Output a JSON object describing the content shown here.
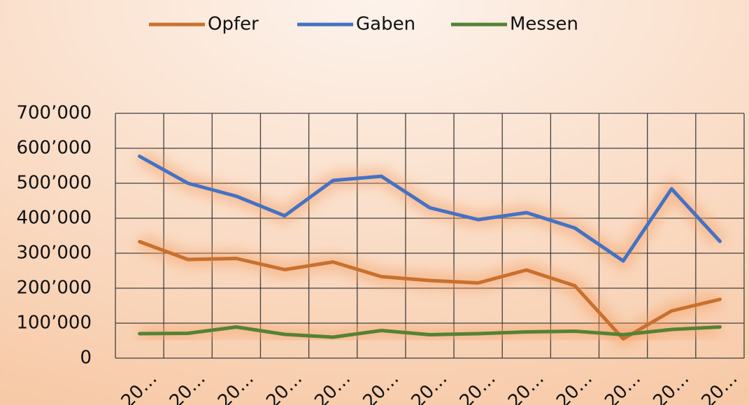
{
  "chart_data": {
    "type": "line",
    "categories": [
      "20…",
      "20…",
      "20…",
      "20…",
      "20…",
      "20…",
      "20…",
      "20…",
      "20…",
      "20…",
      "20…",
      "20…",
      "20…"
    ],
    "series": [
      {
        "name": "Opfer",
        "color": "#c9702e",
        "values": [
          333000,
          282000,
          285000,
          253000,
          275000,
          233000,
          222000,
          215000,
          252000,
          207000,
          55000,
          135000,
          168000
        ]
      },
      {
        "name": "Gaben",
        "color": "#4472c4",
        "values": [
          577000,
          500000,
          463000,
          407000,
          508000,
          520000,
          430000,
          396000,
          416000,
          372000,
          278000,
          484000,
          334000
        ]
      },
      {
        "name": "Messen",
        "color": "#548235",
        "values": [
          70000,
          71000,
          89000,
          68000,
          60000,
          79000,
          67000,
          70000,
          75000,
          77000,
          67000,
          82000,
          89000
        ]
      }
    ],
    "ylim": [
      0,
      700000
    ],
    "yticks": [
      {
        "value": 0,
        "label": "0"
      },
      {
        "value": 100000,
        "label": "100’000"
      },
      {
        "value": 200000,
        "label": "200’000"
      },
      {
        "value": 300000,
        "label": "300’000"
      },
      {
        "value": 400000,
        "label": "400’000"
      },
      {
        "value": 500000,
        "label": "500’000"
      },
      {
        "value": 600000,
        "label": "600’000"
      },
      {
        "value": 700000,
        "label": "700’000"
      }
    ],
    "grid": true,
    "legend": "top"
  }
}
